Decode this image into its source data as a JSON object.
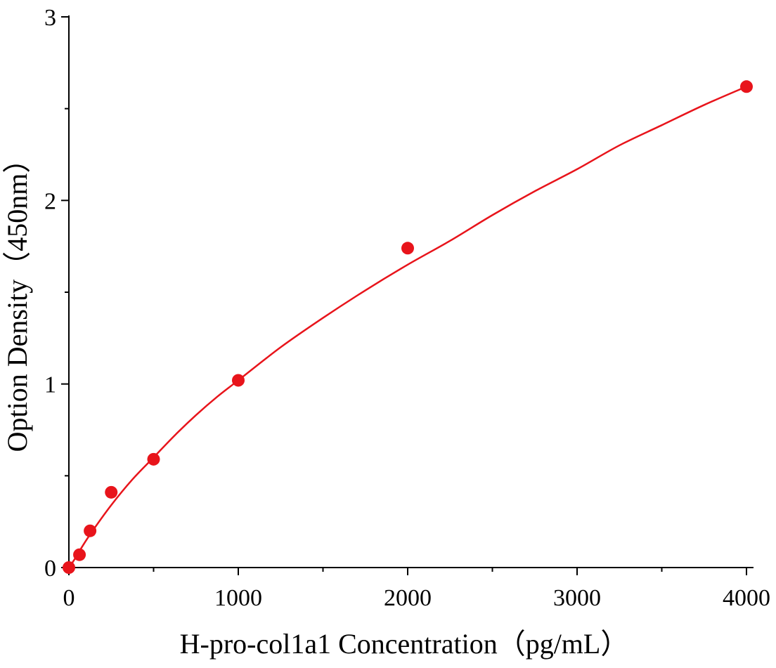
{
  "chart_data": {
    "type": "scatter",
    "title": "",
    "xlabel": "H-pro-col1a1 Concentration（pg/mL）",
    "ylabel": "Option Density（450nm）",
    "xlim": [
      0,
      4000
    ],
    "ylim": [
      0,
      3
    ],
    "x_ticks": [
      0,
      1000,
      2000,
      3000,
      4000
    ],
    "x_ticks_labeled": [
      "0",
      "1000",
      "2000",
      "3000",
      "4000"
    ],
    "x_minor_ticks": [
      500,
      1500,
      2500,
      3500
    ],
    "y_ticks": [
      0,
      1,
      2,
      3
    ],
    "y_ticks_labeled": [
      "0",
      "1",
      "2",
      "3"
    ],
    "y_minor_ticks": [
      0.5,
      1.5,
      2.5
    ],
    "grid": false,
    "legend": "none",
    "series": [
      {
        "kind": "points",
        "color": "#e8141b",
        "x": [
          0,
          62.5,
          125,
          250,
          500,
          1000,
          2000,
          4000
        ],
        "y": [
          0.0,
          0.07,
          0.2,
          0.41,
          0.59,
          1.02,
          1.74,
          2.62
        ]
      },
      {
        "kind": "fit-curve",
        "color": "#e8141b",
        "x": [
          0,
          30,
          62.5,
          125,
          250,
          375,
          500,
          625,
          750,
          875,
          1000,
          1250,
          1500,
          1750,
          2000,
          2250,
          2500,
          2750,
          3000,
          3250,
          3500,
          3750,
          4000
        ],
        "y": [
          0.0,
          0.04,
          0.09,
          0.18,
          0.34,
          0.48,
          0.6,
          0.72,
          0.83,
          0.93,
          1.02,
          1.2,
          1.36,
          1.51,
          1.65,
          1.78,
          1.92,
          2.05,
          2.17,
          2.3,
          2.41,
          2.52,
          2.62
        ]
      }
    ]
  }
}
